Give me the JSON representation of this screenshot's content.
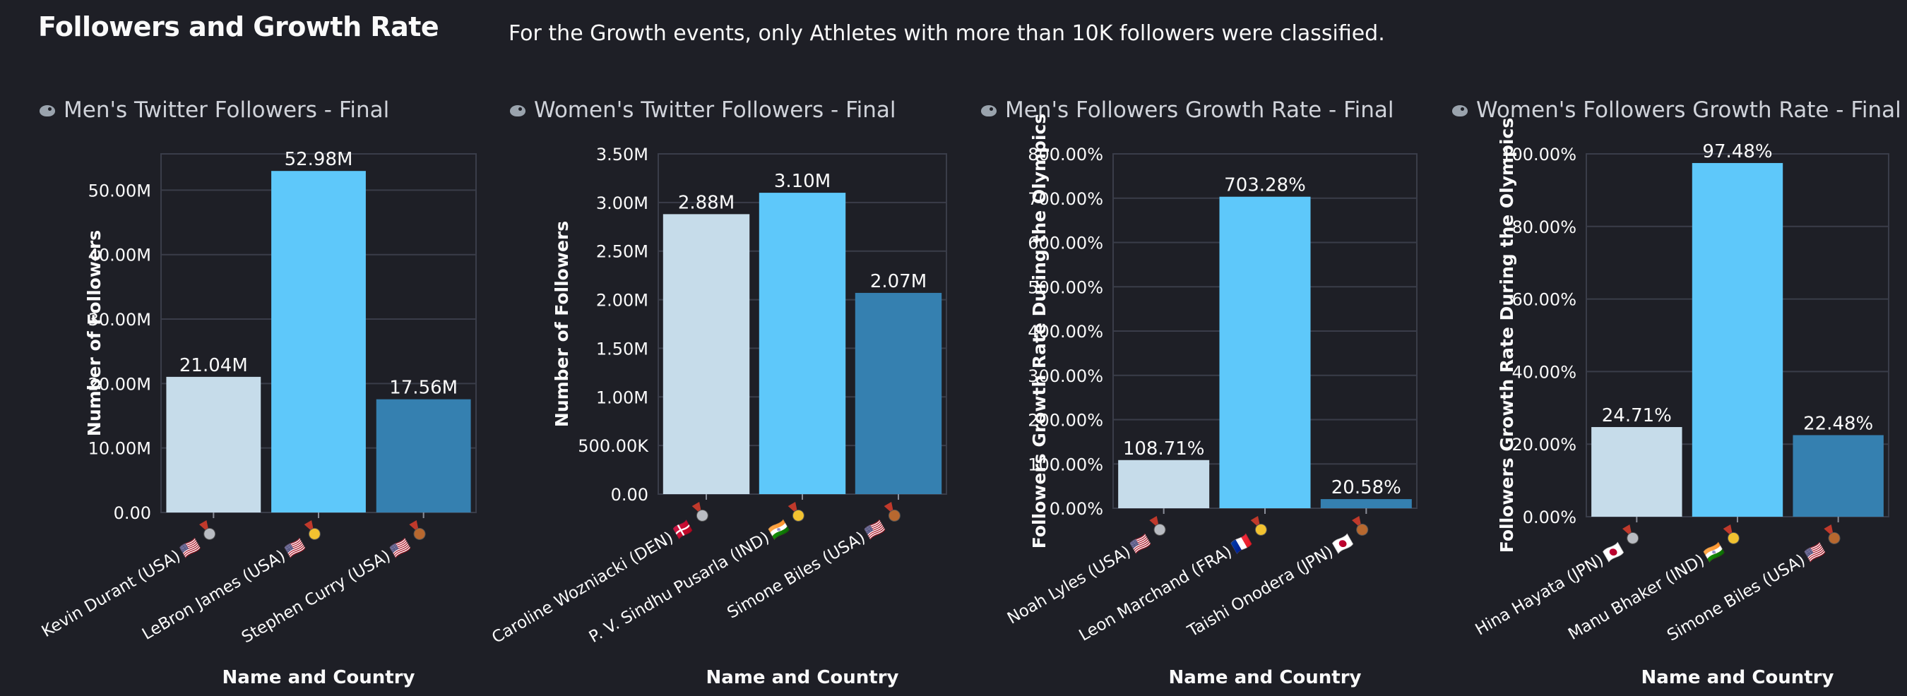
{
  "page": {
    "title": "Followers and Growth Rate",
    "note": "For the Growth events, only Athletes with more than 10K followers were classified."
  },
  "colors": {
    "background": "#1e1f26",
    "gridline": "#3a3d49",
    "bar_silver": "#c6dcea",
    "bar_gold": "#5ec8fa",
    "bar_bronze": "#3580b0"
  },
  "chart_data": [
    {
      "type": "bar",
      "title": "Men's Twitter Followers - Final",
      "title_icon": "twitter-bird-icon",
      "xlabel": "Name and Country",
      "ylabel": "Number of Followers",
      "categories": [
        "Kevin Durant (USA)",
        "LeBron James (USA)",
        "Stephen Curry (USA)"
      ],
      "flags": [
        "🇺🇸",
        "🇺🇸",
        "🇺🇸"
      ],
      "medals": [
        "silver",
        "gold",
        "bronze"
      ],
      "values": [
        21.04,
        52.98,
        17.56
      ],
      "value_labels": [
        "21.04M",
        "52.98M",
        "17.56M"
      ],
      "ylim": [
        0,
        55.63
      ],
      "yticks": [
        0,
        10,
        20,
        30,
        40,
        50
      ],
      "ytick_labels": [
        "0.00",
        "10.00M",
        "20.00M",
        "30.00M",
        "40.00M",
        "50.00M"
      ],
      "grid": true
    },
    {
      "type": "bar",
      "title": "Women's Twitter Followers - Final",
      "title_icon": "twitter-bird-icon",
      "xlabel": "Name and Country",
      "ylabel": "Number of Followers",
      "categories": [
        "Caroline Wozniacki (DEN)",
        "P. V. Sindhu Pusarla (IND)",
        "Simone Biles (USA)"
      ],
      "flags": [
        "🇩🇰",
        "🇮🇳",
        "🇺🇸"
      ],
      "medals": [
        "silver",
        "gold",
        "bronze"
      ],
      "values": [
        2.88,
        3.1,
        2.07
      ],
      "value_labels": [
        "2.88M",
        "3.10M",
        "2.07M"
      ],
      "ylim": [
        0,
        3.5
      ],
      "yticks": [
        0,
        0.5,
        1.0,
        1.5,
        2.0,
        2.5,
        3.0,
        3.5
      ],
      "ytick_labels": [
        "0.00",
        "500.00K",
        "1.00M",
        "1.50M",
        "2.00M",
        "2.50M",
        "3.00M",
        "3.50M"
      ],
      "grid": true
    },
    {
      "type": "bar",
      "title": "Men's Followers Growth Rate - Final",
      "title_icon": "twitter-bird-icon",
      "xlabel": "Name and Country",
      "ylabel": "Followers Growth Rate During the Olympics",
      "categories": [
        "Noah Lyles (USA)",
        "Leon Marchand (FRA)",
        "Taishi Onodera (JPN)"
      ],
      "flags": [
        "🇺🇸",
        "🇫🇷",
        "🇯🇵"
      ],
      "medals": [
        "silver",
        "gold",
        "bronze"
      ],
      "values": [
        108.71,
        703.28,
        20.58
      ],
      "value_labels": [
        "108.71%",
        "703.28%",
        "20.58%"
      ],
      "ylim": [
        0,
        800
      ],
      "yticks": [
        0,
        100,
        200,
        300,
        400,
        500,
        600,
        700,
        800
      ],
      "ytick_labels": [
        "0.00%",
        "100.00%",
        "200.00%",
        "300.00%",
        "400.00%",
        "500.00%",
        "600.00%",
        "700.00%",
        "800.00%"
      ],
      "grid": true
    },
    {
      "type": "bar",
      "title": "Women's Followers Growth Rate - Final",
      "title_icon": "twitter-bird-icon",
      "xlabel": "Name and Country",
      "ylabel": "Followers Growth Rate During the Olympics",
      "categories": [
        "Hina Hayata (JPN)",
        "Manu Bhaker (IND)",
        "Simone Biles (USA)"
      ],
      "flags": [
        "🇯🇵",
        "🇮🇳",
        "🇺🇸"
      ],
      "medals": [
        "silver",
        "gold",
        "bronze"
      ],
      "values": [
        24.71,
        97.48,
        22.48
      ],
      "value_labels": [
        "24.71%",
        "97.48%",
        "22.48%"
      ],
      "ylim": [
        0,
        100
      ],
      "yticks": [
        0,
        20,
        40,
        60,
        80,
        100
      ],
      "ytick_labels": [
        "0.00%",
        "20.00%",
        "40.00%",
        "60.00%",
        "80.00%",
        "100.00%"
      ],
      "grid": true
    }
  ]
}
